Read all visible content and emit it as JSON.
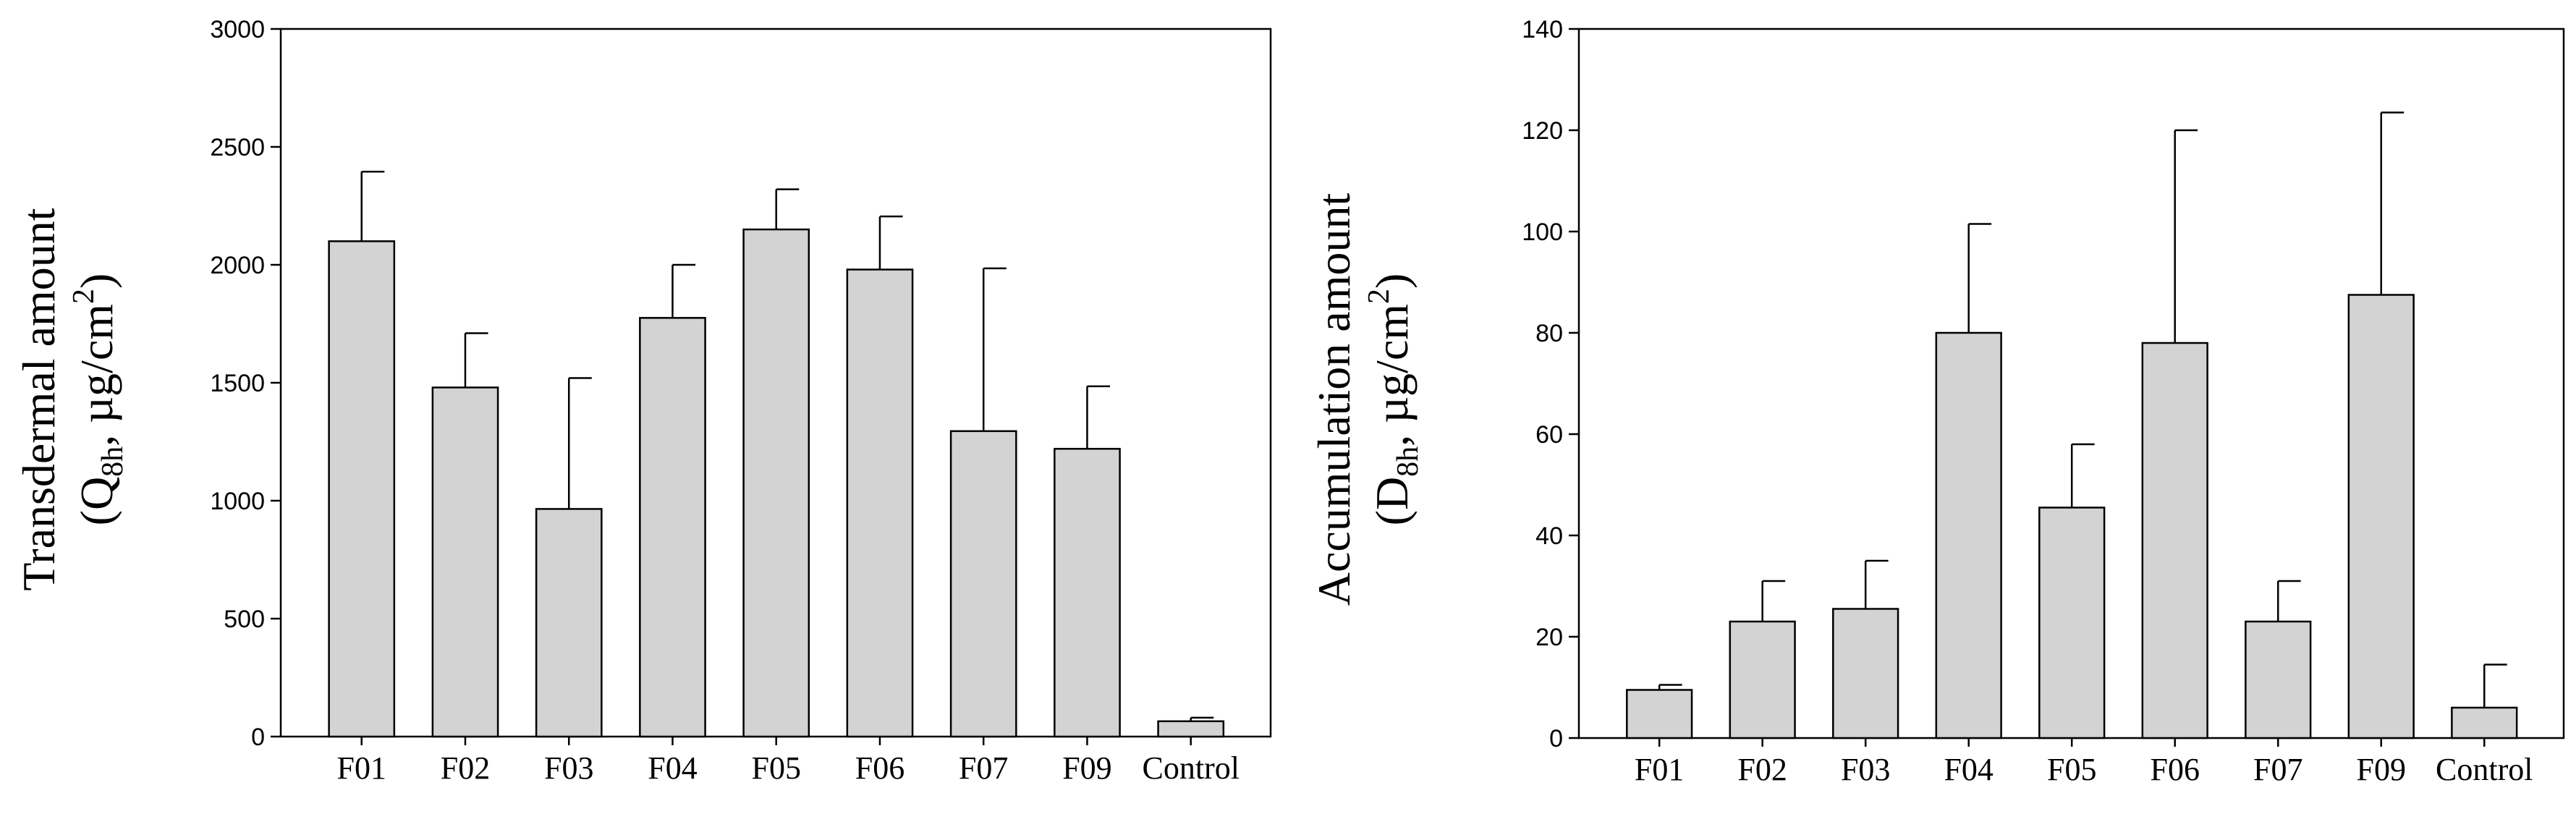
{
  "chart_data": [
    {
      "type": "bar",
      "title": "",
      "xlabel": "",
      "ylabel_line1": "Transdermal  amount",
      "ylabel_line2_prefix": "(Q",
      "ylabel_line2_sub": "8h",
      "ylabel_line2_mid": ", µg/cm",
      "ylabel_line2_sup": "2",
      "ylabel_line2_suffix": ")",
      "categories": [
        "F01",
        "F02",
        "F03",
        "F04",
        "F05",
        "F06",
        "F07",
        "F09",
        "Control"
      ],
      "values": [
        2100,
        1480,
        965,
        1775,
        2150,
        1980,
        1295,
        1220,
        65
      ],
      "error_upper": [
        2395,
        1710,
        1520,
        2000,
        2320,
        2205,
        1985,
        1485,
        80
      ],
      "ylim": [
        0,
        3000
      ],
      "yticks": [
        0,
        500,
        1000,
        1500,
        2000,
        2500,
        3000
      ],
      "grid": false,
      "bar_color": "#d3d3d3"
    },
    {
      "type": "bar",
      "title": "",
      "xlabel": "",
      "ylabel_line1": "Accumulation amount",
      "ylabel_line2_prefix": "(D",
      "ylabel_line2_sub": "8h",
      "ylabel_line2_mid": ", µg/cm",
      "ylabel_line2_sup": "2",
      "ylabel_line2_suffix": ")",
      "categories": [
        "F01",
        "F02",
        "F03",
        "F04",
        "F05",
        "F06",
        "F07",
        "F09",
        "Control"
      ],
      "values": [
        9.5,
        23,
        25.5,
        80,
        45.5,
        78,
        23,
        87.5,
        6
      ],
      "error_upper": [
        10.5,
        31,
        35,
        101.5,
        58,
        120,
        31,
        123.5,
        14.5
      ],
      "ylim": [
        0,
        140
      ],
      "yticks": [
        0,
        20,
        40,
        60,
        80,
        100,
        120,
        140
      ],
      "grid": false,
      "bar_color": "#d3d3d3"
    }
  ]
}
